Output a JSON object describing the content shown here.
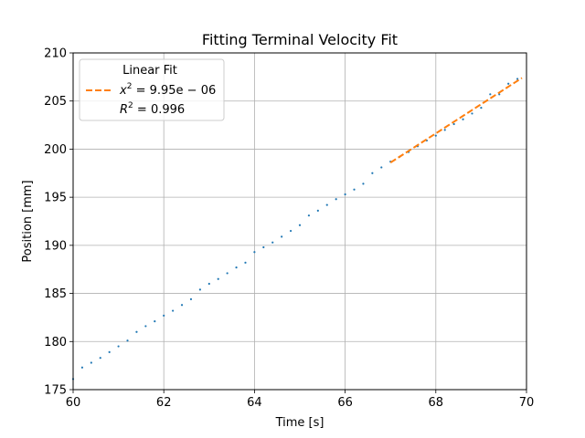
{
  "chart_data": {
    "type": "scatter",
    "title": "Fitting Terminal Velocity Fit",
    "xlabel": "Time [s]",
    "ylabel": "Position [mm]",
    "xlim": [
      60,
      70
    ],
    "ylim": [
      175,
      210
    ],
    "xticks": [
      60,
      62,
      64,
      66,
      68,
      70
    ],
    "yticks": [
      175,
      180,
      185,
      190,
      195,
      200,
      205,
      210
    ],
    "grid": true,
    "legend_position": "top-left",
    "series": [
      {
        "style": "points",
        "color": "#1f77b4",
        "x": [
          60.0,
          60.2,
          60.4,
          60.6,
          60.8,
          61.0,
          61.2,
          61.4,
          61.6,
          61.8,
          62.0,
          62.2,
          62.4,
          62.6,
          62.8,
          63.0,
          63.2,
          63.4,
          63.6,
          63.8,
          64.0,
          64.2,
          64.4,
          64.6,
          64.8,
          65.0,
          65.2,
          65.4,
          65.6,
          65.8,
          66.0,
          66.2,
          66.4,
          66.6,
          66.8,
          67.0,
          67.2,
          67.4,
          67.6,
          67.8,
          68.0,
          68.2,
          68.4,
          68.6,
          68.8,
          69.0,
          69.2,
          69.4,
          69.6,
          69.8
        ],
        "y": [
          176.1,
          177.3,
          177.8,
          178.3,
          178.9,
          179.5,
          180.1,
          181.0,
          181.6,
          182.1,
          182.7,
          183.2,
          183.8,
          184.4,
          185.4,
          186.0,
          186.5,
          187.1,
          187.7,
          188.2,
          189.3,
          189.8,
          190.3,
          190.9,
          191.5,
          192.1,
          193.1,
          193.6,
          194.2,
          194.8,
          195.3,
          195.8,
          196.4,
          197.5,
          198.1,
          198.7,
          199.2,
          199.7,
          200.3,
          200.9,
          201.4,
          202.0,
          202.6,
          203.1,
          203.7,
          204.3,
          205.7,
          205.7,
          206.8,
          207.3
        ]
      },
      {
        "name": "Linear Fit",
        "style": "dashed-line",
        "color": "#ff7f0e",
        "x": [
          67.0,
          69.9
        ],
        "y": [
          198.6,
          207.4
        ]
      }
    ],
    "legend": {
      "title": "Linear Fit",
      "chi2_lhs": "x",
      "chi2_sup": "2",
      "chi2_rhs": " = 9.95e − 06",
      "r2_lhs": "R",
      "r2_sup": "2",
      "r2_rhs": " = 0.996"
    }
  }
}
